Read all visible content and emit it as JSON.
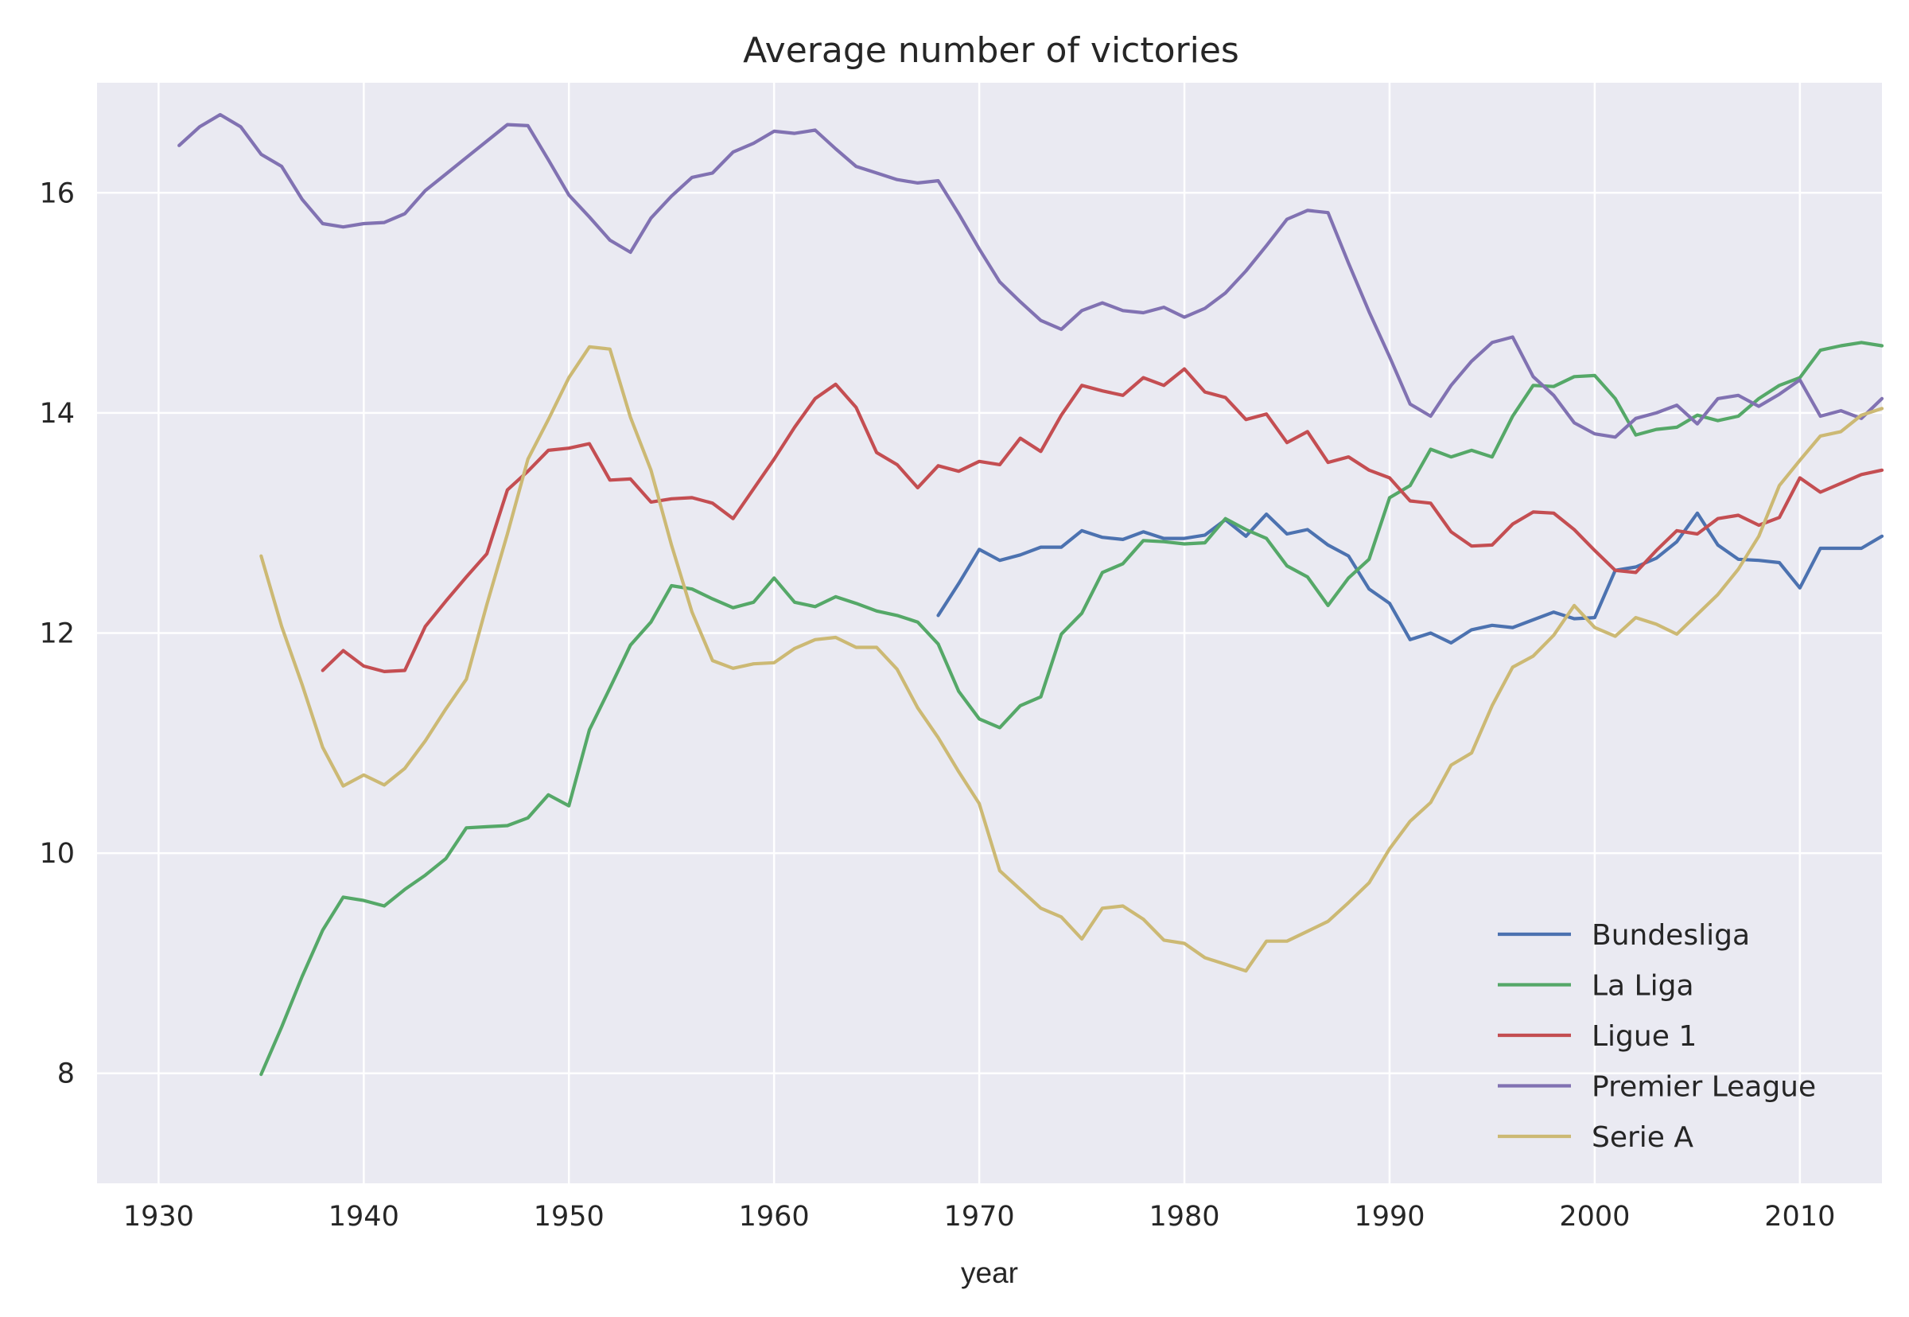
{
  "chart_data": {
    "type": "line",
    "title": "Average number of victories",
    "xlabel": "year",
    "ylabel": "",
    "xlim": [
      1927,
      2014
    ],
    "ylim": [
      7,
      17
    ],
    "xticks": [
      1930,
      1940,
      1950,
      1960,
      1970,
      1980,
      1990,
      2000,
      2010
    ],
    "yticks": [
      8,
      10,
      12,
      14,
      16
    ],
    "grid": true,
    "legend_position": "lower-right",
    "series": [
      {
        "name": "Bundesliga",
        "color": "#4c72b0",
        "x": [
          1968,
          1969,
          1970,
          1971,
          1972,
          1973,
          1974,
          1975,
          1976,
          1977,
          1978,
          1979,
          1980,
          1981,
          1982,
          1983,
          1984,
          1985,
          1986,
          1987,
          1988,
          1989,
          1990,
          1991,
          1992,
          1993,
          1994,
          1995,
          1996,
          1997,
          1998,
          1999,
          2000,
          2001,
          2002,
          2003,
          2004,
          2005,
          2006,
          2007,
          2008,
          2009,
          2010,
          2011,
          2012,
          2013,
          2014
        ],
        "y": [
          12.16,
          12.45,
          12.76,
          12.66,
          12.71,
          12.78,
          12.78,
          12.93,
          12.87,
          12.85,
          12.92,
          12.86,
          12.86,
          12.89,
          13.03,
          12.88,
          13.08,
          12.9,
          12.94,
          12.8,
          12.7,
          12.4,
          12.27,
          11.94,
          12.0,
          11.91,
          12.03,
          12.07,
          12.05,
          12.12,
          12.19,
          12.13,
          12.14,
          12.57,
          12.6,
          12.68,
          12.83,
          13.09,
          12.8,
          12.67,
          12.66,
          12.64,
          12.41,
          12.77,
          12.77,
          12.77,
          12.88
        ]
      },
      {
        "name": "La Liga",
        "color": "#55a868",
        "x": [
          1935,
          1936,
          1937,
          1938,
          1939,
          1940,
          1941,
          1942,
          1943,
          1944,
          1945,
          1946,
          1947,
          1948,
          1949,
          1950,
          1951,
          1952,
          1953,
          1954,
          1955,
          1956,
          1957,
          1958,
          1959,
          1960,
          1961,
          1962,
          1963,
          1964,
          1965,
          1966,
          1967,
          1968,
          1969,
          1970,
          1971,
          1972,
          1973,
          1974,
          1975,
          1976,
          1977,
          1978,
          1979,
          1980,
          1981,
          1982,
          1983,
          1984,
          1985,
          1986,
          1987,
          1988,
          1989,
          1990,
          1991,
          1992,
          1993,
          1994,
          1995,
          1996,
          1997,
          1998,
          1999,
          2000,
          2001,
          2002,
          2003,
          2004,
          2005,
          2006,
          2007,
          2008,
          2009,
          2010,
          2011,
          2012,
          2013,
          2014
        ],
        "y": [
          7.99,
          8.42,
          8.88,
          9.3,
          9.6,
          9.57,
          9.52,
          9.67,
          9.8,
          9.95,
          10.23,
          10.24,
          10.25,
          10.32,
          10.53,
          10.43,
          11.12,
          11.5,
          11.89,
          12.1,
          12.43,
          12.4,
          12.31,
          12.23,
          12.28,
          12.5,
          12.28,
          12.24,
          12.33,
          12.27,
          12.2,
          12.16,
          12.1,
          11.9,
          11.47,
          11.22,
          11.14,
          11.34,
          11.42,
          11.99,
          12.18,
          12.55,
          12.63,
          12.84,
          12.83,
          12.81,
          12.82,
          13.04,
          12.94,
          12.86,
          12.61,
          12.51,
          12.25,
          12.5,
          12.67,
          13.23,
          13.34,
          13.67,
          13.6,
          13.66,
          13.6,
          13.97,
          14.25,
          14.24,
          14.33,
          14.34,
          14.13,
          13.8,
          13.85,
          13.87,
          13.98,
          13.93,
          13.97,
          14.13,
          14.25,
          14.32,
          14.57,
          14.61,
          14.64,
          14.61
        ]
      },
      {
        "name": "Ligue 1",
        "color": "#c44e52",
        "x": [
          1938,
          1939,
          1940,
          1941,
          1942,
          1943,
          1944,
          1945,
          1946,
          1947,
          1948,
          1949,
          1950,
          1951,
          1952,
          1953,
          1954,
          1955,
          1956,
          1957,
          1958,
          1959,
          1960,
          1961,
          1962,
          1963,
          1964,
          1965,
          1966,
          1967,
          1968,
          1969,
          1970,
          1971,
          1972,
          1973,
          1974,
          1975,
          1976,
          1977,
          1978,
          1979,
          1980,
          1981,
          1982,
          1983,
          1984,
          1985,
          1986,
          1987,
          1988,
          1989,
          1990,
          1991,
          1992,
          1993,
          1994,
          1995,
          1996,
          1997,
          1998,
          1999,
          2000,
          2001,
          2002,
          2003,
          2004,
          2005,
          2006,
          2007,
          2008,
          2009,
          2010,
          2011,
          2012,
          2013,
          2014
        ],
        "y": [
          11.66,
          11.84,
          11.7,
          11.65,
          11.66,
          12.06,
          12.29,
          12.51,
          12.72,
          13.3,
          13.47,
          13.66,
          13.68,
          13.72,
          13.39,
          13.4,
          13.19,
          13.22,
          13.23,
          13.18,
          13.04,
          13.31,
          13.58,
          13.87,
          14.13,
          14.26,
          14.05,
          13.64,
          13.53,
          13.32,
          13.52,
          13.47,
          13.56,
          13.53,
          13.77,
          13.65,
          13.98,
          14.25,
          14.2,
          14.16,
          14.32,
          14.25,
          14.4,
          14.19,
          14.14,
          13.94,
          13.99,
          13.73,
          13.83,
          13.55,
          13.6,
          13.48,
          13.41,
          13.2,
          13.18,
          12.92,
          12.79,
          12.8,
          12.99,
          13.1,
          13.09,
          12.94,
          12.75,
          12.57,
          12.55,
          12.75,
          12.93,
          12.9,
          13.04,
          13.07,
          12.98,
          13.05,
          13.41,
          13.28,
          13.36,
          13.44,
          13.48
        ]
      },
      {
        "name": "Premier League",
        "color": "#8172b2",
        "x": [
          1931,
          1932,
          1933,
          1934,
          1935,
          1936,
          1937,
          1938,
          1939,
          1940,
          1941,
          1942,
          1943,
          1944,
          1945,
          1946,
          1947,
          1948,
          1949,
          1950,
          1951,
          1952,
          1953,
          1954,
          1955,
          1956,
          1957,
          1958,
          1959,
          1960,
          1961,
          1962,
          1963,
          1964,
          1965,
          1966,
          1967,
          1968,
          1969,
          1970,
          1971,
          1972,
          1973,
          1974,
          1975,
          1976,
          1977,
          1978,
          1979,
          1980,
          1981,
          1982,
          1983,
          1984,
          1985,
          1986,
          1987,
          1988,
          1989,
          1990,
          1991,
          1992,
          1993,
          1994,
          1995,
          1996,
          1997,
          1998,
          1999,
          2000,
          2001,
          2002,
          2003,
          2004,
          2005,
          2006,
          2007,
          2008,
          2009,
          2010,
          2011,
          2012,
          2013,
          2014
        ],
        "y": [
          16.43,
          16.6,
          16.71,
          16.6,
          16.35,
          16.24,
          15.94,
          15.72,
          15.69,
          15.72,
          15.73,
          15.81,
          16.02,
          16.17,
          16.32,
          16.47,
          16.62,
          16.61,
          16.3,
          15.98,
          15.78,
          15.57,
          15.46,
          15.77,
          15.97,
          16.14,
          16.18,
          16.37,
          16.45,
          16.56,
          16.54,
          16.57,
          16.4,
          16.24,
          16.18,
          16.12,
          16.09,
          16.11,
          15.81,
          15.49,
          15.19,
          15.01,
          14.84,
          14.76,
          14.93,
          15.0,
          14.93,
          14.91,
          14.96,
          14.87,
          14.95,
          15.09,
          15.29,
          15.52,
          15.76,
          15.84,
          15.82,
          15.36,
          14.92,
          14.51,
          14.08,
          13.97,
          14.25,
          14.47,
          14.64,
          14.69,
          14.33,
          14.16,
          13.91,
          13.81,
          13.78,
          13.95,
          14.0,
          14.07,
          13.9,
          14.13,
          14.16,
          14.06,
          14.17,
          14.3,
          13.97,
          14.02,
          13.95,
          14.13
        ]
      },
      {
        "name": "Serie A",
        "color": "#ccb974",
        "x": [
          1935,
          1936,
          1937,
          1938,
          1939,
          1940,
          1941,
          1942,
          1943,
          1944,
          1945,
          1946,
          1947,
          1948,
          1949,
          1950,
          1951,
          1952,
          1953,
          1954,
          1955,
          1956,
          1957,
          1958,
          1959,
          1960,
          1961,
          1962,
          1963,
          1964,
          1965,
          1966,
          1967,
          1968,
          1969,
          1970,
          1971,
          1972,
          1973,
          1974,
          1975,
          1976,
          1977,
          1978,
          1979,
          1980,
          1981,
          1982,
          1983,
          1984,
          1985,
          1986,
          1987,
          1988,
          1989,
          1990,
          1991,
          1992,
          1993,
          1994,
          1995,
          1996,
          1997,
          1998,
          1999,
          2000,
          2001,
          2002,
          2003,
          2004,
          2005,
          2006,
          2007,
          2008,
          2009,
          2010,
          2011,
          2012,
          2013,
          2014
        ],
        "y": [
          12.7,
          12.06,
          11.53,
          10.96,
          10.61,
          10.71,
          10.62,
          10.77,
          11.02,
          11.31,
          11.58,
          12.26,
          12.9,
          13.58,
          13.94,
          14.32,
          14.6,
          14.58,
          13.96,
          13.48,
          12.8,
          12.19,
          11.75,
          11.68,
          11.72,
          11.73,
          11.86,
          11.94,
          11.96,
          11.87,
          11.87,
          11.67,
          11.32,
          11.05,
          10.74,
          10.45,
          9.84,
          9.67,
          9.5,
          9.42,
          9.22,
          9.5,
          9.52,
          9.4,
          9.21,
          9.18,
          9.05,
          8.99,
          8.93,
          9.2,
          9.2,
          9.29,
          9.38,
          9.55,
          9.73,
          10.04,
          10.29,
          10.46,
          10.8,
          10.91,
          11.34,
          11.69,
          11.79,
          11.98,
          12.25,
          12.05,
          11.97,
          12.14,
          12.08,
          11.99,
          12.17,
          12.35,
          12.58,
          12.88,
          13.34,
          13.57,
          13.79,
          13.83,
          13.98,
          14.04
        ]
      }
    ]
  }
}
